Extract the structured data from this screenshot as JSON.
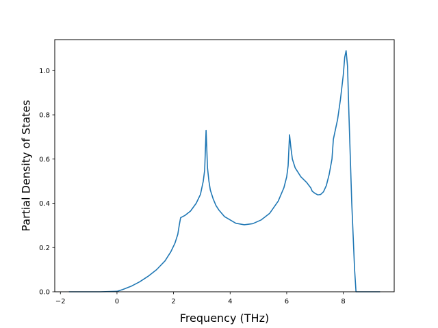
{
  "chart_data": {
    "type": "line",
    "title": "",
    "xlabel": "Frequency (THz)",
    "ylabel": "Partial Density of States",
    "xlim": [
      -2.2,
      9.8
    ],
    "ylim": [
      0.0,
      1.14
    ],
    "xticks": [
      -2,
      0,
      2,
      4,
      6,
      8
    ],
    "xtick_labels": [
      "−2",
      "0",
      "2",
      "4",
      "6",
      "8"
    ],
    "yticks": [
      0.0,
      0.2,
      0.4,
      0.6,
      0.8,
      1.0
    ],
    "ytick_labels": [
      "0.0",
      "0.2",
      "0.4",
      "0.6",
      "0.8",
      "1.0"
    ],
    "grid": false,
    "legend": "none",
    "series": [
      {
        "color": "#1f77b4",
        "x": [
          -1.7,
          -0.6,
          0.0,
          0.2,
          0.5,
          0.8,
          1.1,
          1.4,
          1.7,
          1.9,
          2.05,
          2.15,
          2.2,
          2.25,
          2.4,
          2.6,
          2.8,
          2.95,
          3.05,
          3.1,
          3.15,
          3.2,
          3.25,
          3.3,
          3.4,
          3.5,
          3.6,
          3.8,
          4.0,
          4.2,
          4.5,
          4.8,
          5.1,
          5.4,
          5.7,
          5.9,
          6.0,
          6.05,
          6.1,
          6.15,
          6.2,
          6.3,
          6.5,
          6.7,
          6.85,
          6.9,
          7.0,
          7.1,
          7.2,
          7.3,
          7.4,
          7.5,
          7.6,
          7.65,
          7.7,
          7.8,
          7.9,
          8.0,
          8.05,
          8.1,
          8.15,
          8.2,
          8.3,
          8.4,
          8.45,
          9.3
        ],
        "y": [
          0.0,
          0.0,
          0.002,
          0.01,
          0.025,
          0.045,
          0.07,
          0.1,
          0.14,
          0.18,
          0.22,
          0.26,
          0.3,
          0.335,
          0.345,
          0.365,
          0.4,
          0.44,
          0.5,
          0.55,
          0.73,
          0.56,
          0.5,
          0.46,
          0.42,
          0.39,
          0.37,
          0.34,
          0.325,
          0.31,
          0.303,
          0.308,
          0.325,
          0.355,
          0.41,
          0.47,
          0.52,
          0.57,
          0.71,
          0.65,
          0.6,
          0.56,
          0.52,
          0.495,
          0.47,
          0.455,
          0.445,
          0.438,
          0.44,
          0.452,
          0.48,
          0.53,
          0.6,
          0.69,
          0.72,
          0.78,
          0.87,
          0.98,
          1.06,
          1.09,
          1.02,
          0.8,
          0.4,
          0.1,
          0.0,
          0.0
        ]
      }
    ]
  }
}
